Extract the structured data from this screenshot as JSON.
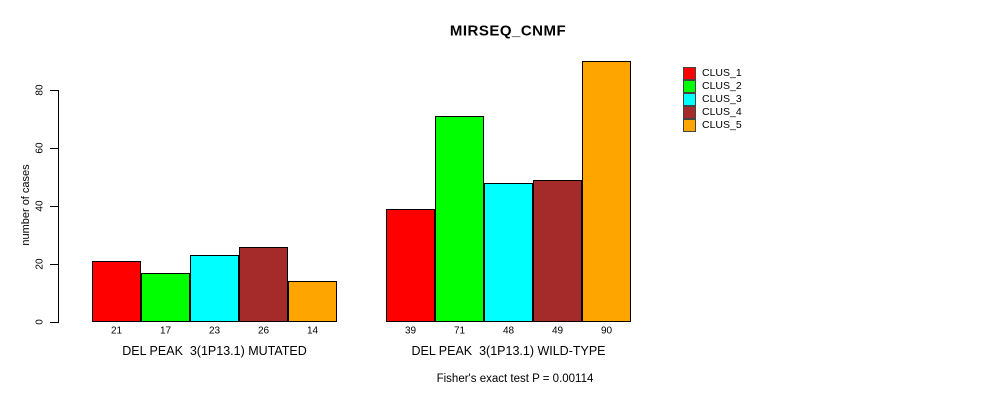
{
  "chart_data": {
    "type": "bar",
    "title": "MIRSEQ_CNMF",
    "ylabel": "number of cases",
    "ylim": [
      0,
      90
    ],
    "yticks": [
      0,
      20,
      40,
      60,
      80
    ],
    "grid": false,
    "legend_position": "right",
    "categories": [
      "DEL PEAK  3(1P13.1) MUTATED",
      "DEL PEAK  3(1P13.1) WILD-TYPE"
    ],
    "series": [
      {
        "name": "CLUS_1",
        "color": "#FF0000",
        "values": [
          21,
          39
        ]
      },
      {
        "name": "CLUS_2",
        "color": "#00FF00",
        "values": [
          17,
          71
        ]
      },
      {
        "name": "CLUS_3",
        "color": "#00FFFF",
        "values": [
          23,
          48
        ]
      },
      {
        "name": "CLUS_4",
        "color": "#A52A2A",
        "values": [
          26,
          49
        ]
      },
      {
        "name": "CLUS_5",
        "color": "#FFA500",
        "values": [
          14,
          90
        ]
      }
    ],
    "annotation": "Fisher's exact test P = 0.00114"
  }
}
